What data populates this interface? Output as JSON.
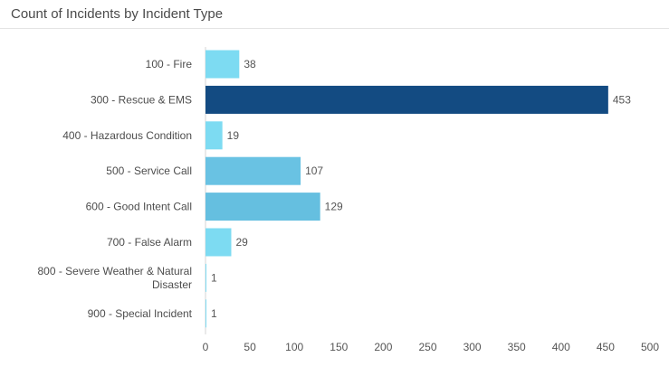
{
  "panel": {
    "title": "Count of Incidents by Incident Type"
  },
  "chart_data": {
    "type": "bar",
    "orientation": "horizontal",
    "title": "Count of Incidents by Incident Type",
    "xlabel": "",
    "ylabel": "",
    "categories": [
      [
        "100 - Fire"
      ],
      [
        "300 - Rescue & EMS"
      ],
      [
        "400 - Hazardous Condition"
      ],
      [
        "500 - Service Call"
      ],
      [
        "600 - Good Intent Call"
      ],
      [
        "700 - False Alarm"
      ],
      [
        "800 - Severe Weather & Natural",
        "Disaster"
      ],
      [
        "900 - Special Incident"
      ]
    ],
    "values": [
      38,
      453,
      19,
      107,
      129,
      29,
      1,
      1
    ],
    "colors": [
      "#7ddbf2",
      "#134b82",
      "#7ddbf2",
      "#69c2e3",
      "#65bfe0",
      "#7ddbf2",
      "#7ddbf2",
      "#7ddbf2"
    ],
    "xlim": [
      0,
      500
    ],
    "xticks": [
      0,
      50,
      100,
      150,
      200,
      250,
      300,
      350,
      400,
      450,
      500
    ],
    "grid": false,
    "legend": "none"
  }
}
